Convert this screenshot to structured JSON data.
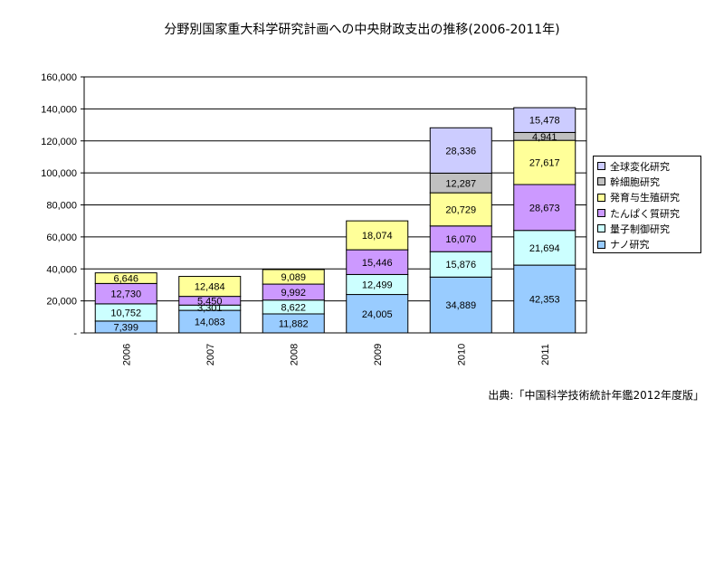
{
  "title": "分野別国家重大科学研究計画への中央財政支出の推移(2006-2011年)",
  "source": "出典:「中国科学技術統計年鑑2012年度版」",
  "chart_data": {
    "type": "bar",
    "stacked": true,
    "title": "分野別国家重大科学研究計画への中央財政支出の推移(2006-2011年)",
    "categories": [
      "2006",
      "2007",
      "2008",
      "2009",
      "2010",
      "2011"
    ],
    "ylim": [
      0,
      160000
    ],
    "yticks": [
      "160,000",
      "140,000",
      "120,000",
      "100,000",
      "80,000",
      "60,000",
      "40,000",
      "20,000",
      "-"
    ],
    "grid": true,
    "legend_position": "right",
    "series": [
      {
        "name": "ナノ研究",
        "color": "#99ccff",
        "values": [
          7399,
          14083,
          11882,
          24005,
          34889,
          42353
        ]
      },
      {
        "name": "量子制御研究",
        "color": "#ccffff",
        "values": [
          10752,
          3301,
          8622,
          12499,
          15876,
          21694
        ]
      },
      {
        "name": "たんぱく質研究",
        "color": "#cc99ff",
        "values": [
          12730,
          5450,
          9992,
          15446,
          16070,
          28673
        ]
      },
      {
        "name": "発育与生殖研究",
        "color": "#ffff99",
        "values": [
          6646,
          12484,
          9089,
          18074,
          20729,
          27617
        ]
      },
      {
        "name": "幹細胞研究",
        "color": "#c0c0c0",
        "values": [
          0,
          0,
          0,
          0,
          12287,
          4941
        ]
      },
      {
        "name": "全球変化研究",
        "color": "#ccccff",
        "values": [
          0,
          0,
          0,
          0,
          28336,
          15478
        ]
      }
    ],
    "data_labels": [
      [
        "7,399",
        "14,083",
        "11,882",
        "24,005",
        "34,889",
        "42,353"
      ],
      [
        "10,752",
        "3,301",
        "8,622",
        "12,499",
        "15,876",
        "21,694"
      ],
      [
        "12,730",
        "5,450",
        "9,992",
        "15,446",
        "16,070",
        "28,673"
      ],
      [
        "6,646",
        "12,484",
        "9,089",
        "18,074",
        "20,729",
        "27,617"
      ],
      [
        "",
        "",
        "",
        "",
        "12,287",
        "4,941"
      ],
      [
        "",
        "",
        "",
        "",
        "28,336",
        "15,478"
      ]
    ]
  }
}
